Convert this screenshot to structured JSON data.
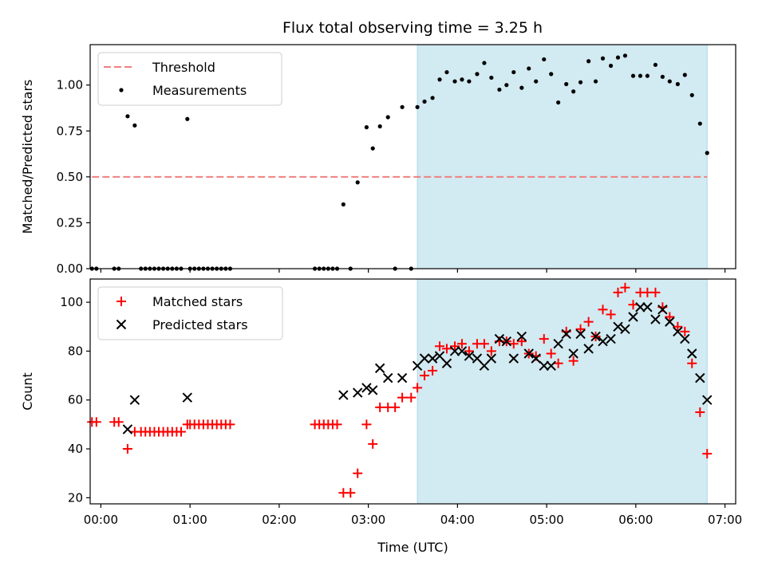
{
  "title": "Flux total observing time = 3.25 h",
  "colors": {
    "threshold": "#f08080",
    "measurement": "#000000",
    "matched": "#ff0000",
    "predicted": "#000000",
    "shade": "#add8e6"
  },
  "chart_data": [
    {
      "type": "scatter",
      "ylabel": "Matched/Predicted stars",
      "xlim": [
        -0.12,
        7.12
      ],
      "ylim": [
        0.0,
        1.22
      ],
      "yticks": [
        0.0,
        0.25,
        0.5,
        0.75,
        1.0
      ],
      "ytick_labels": [
        "0.00",
        "0.25",
        "0.50",
        "0.75",
        "1.00"
      ],
      "shaded_region": [
        3.55,
        6.8
      ],
      "legend": {
        "placement": "upper-left",
        "entries": [
          "Threshold",
          "Measurements"
        ]
      },
      "series": [
        {
          "name": "Threshold",
          "kind": "dashed-line",
          "x": [
            -0.1,
            6.8
          ],
          "y": [
            0.5,
            0.5
          ]
        },
        {
          "name": "Measurements",
          "kind": "dots",
          "x": [
            -0.1,
            -0.05,
            0.15,
            0.2,
            0.3,
            0.38,
            0.45,
            0.5,
            0.55,
            0.6,
            0.65,
            0.7,
            0.75,
            0.8,
            0.85,
            0.9,
            0.97,
            1.0,
            1.05,
            1.1,
            1.15,
            1.2,
            1.25,
            1.3,
            1.35,
            1.4,
            1.45,
            2.4,
            2.45,
            2.5,
            2.55,
            2.6,
            2.65,
            2.72,
            2.8,
            2.88,
            2.98,
            3.05,
            3.13,
            3.22,
            3.3,
            3.38,
            3.48,
            3.55,
            3.63,
            3.72,
            3.8,
            3.88,
            3.97,
            4.05,
            4.13,
            4.22,
            4.3,
            4.38,
            4.47,
            4.55,
            4.63,
            4.72,
            4.8,
            4.88,
            4.97,
            5.05,
            5.13,
            5.22,
            5.3,
            5.38,
            5.47,
            5.55,
            5.63,
            5.72,
            5.8,
            5.88,
            5.97,
            6.05,
            6.13,
            6.22,
            6.3,
            6.38,
            6.47,
            6.55,
            6.63,
            6.72,
            6.8
          ],
          "y": [
            0.0,
            0.0,
            0.0,
            0.0,
            0.83,
            0.78,
            0.0,
            0.0,
            0.0,
            0.0,
            0.0,
            0.0,
            0.0,
            0.0,
            0.0,
            0.0,
            0.815,
            0.0,
            0.0,
            0.0,
            0.0,
            0.0,
            0.0,
            0.0,
            0.0,
            0.0,
            0.0,
            0.0,
            0.0,
            0.0,
            0.0,
            0.0,
            0.0,
            0.35,
            0.0,
            0.47,
            0.77,
            0.655,
            0.775,
            0.825,
            0.0,
            0.88,
            0.0,
            0.88,
            0.91,
            0.93,
            1.03,
            1.07,
            1.02,
            1.03,
            1.02,
            1.06,
            1.12,
            1.04,
            0.975,
            1.0,
            1.07,
            0.985,
            1.09,
            1.02,
            1.14,
            1.06,
            0.905,
            1.005,
            0.965,
            1.015,
            1.13,
            1.02,
            1.145,
            1.105,
            1.15,
            1.16,
            1.05,
            1.05,
            1.05,
            1.11,
            1.045,
            1.02,
            1.005,
            1.055,
            0.945,
            0.79,
            0.63
          ]
        }
      ]
    },
    {
      "type": "scatter",
      "ylabel": "Count",
      "xlabel": "Time (UTC)",
      "xlim": [
        -0.12,
        7.12
      ],
      "ylim": [
        17.5,
        109.5
      ],
      "xticks": [
        0,
        1,
        2,
        3,
        4,
        5,
        6,
        7
      ],
      "xtick_labels": [
        "00:00",
        "01:00",
        "02:00",
        "03:00",
        "04:00",
        "05:00",
        "06:00",
        "07:00"
      ],
      "yticks": [
        20,
        40,
        60,
        80,
        100
      ],
      "ytick_labels": [
        "20",
        "40",
        "60",
        "80",
        "100"
      ],
      "shaded_region": [
        3.55,
        6.8
      ],
      "legend": {
        "placement": "upper-left",
        "entries": [
          "Matched stars",
          "Predicted stars"
        ]
      },
      "series": [
        {
          "name": "Matched stars",
          "kind": "plus",
          "x": [
            -0.1,
            -0.05,
            0.15,
            0.2,
            0.3,
            0.38,
            0.45,
            0.5,
            0.55,
            0.6,
            0.65,
            0.7,
            0.75,
            0.8,
            0.85,
            0.9,
            0.97,
            1.0,
            1.05,
            1.1,
            1.15,
            1.2,
            1.25,
            1.3,
            1.35,
            1.4,
            1.45,
            2.4,
            2.45,
            2.5,
            2.55,
            2.6,
            2.65,
            2.72,
            2.8,
            2.88,
            2.98,
            3.05,
            3.13,
            3.22,
            3.3,
            3.38,
            3.48,
            3.55,
            3.63,
            3.72,
            3.8,
            3.88,
            3.97,
            4.05,
            4.13,
            4.22,
            4.3,
            4.38,
            4.47,
            4.55,
            4.63,
            4.72,
            4.8,
            4.88,
            4.97,
            5.05,
            5.13,
            5.22,
            5.3,
            5.38,
            5.47,
            5.55,
            5.63,
            5.72,
            5.8,
            5.88,
            5.97,
            6.05,
            6.13,
            6.22,
            6.3,
            6.38,
            6.47,
            6.55,
            6.63,
            6.72,
            6.8
          ],
          "y": [
            51,
            51,
            51,
            51,
            40,
            47,
            47,
            47,
            47,
            47,
            47,
            47,
            47,
            47,
            47,
            47,
            50,
            50,
            50,
            50,
            50,
            50,
            50,
            50,
            50,
            50,
            50,
            50,
            50,
            50,
            50,
            50,
            50,
            22,
            22,
            30,
            50,
            42,
            57,
            57,
            57,
            61,
            61,
            65,
            70,
            72,
            82,
            81,
            82,
            83,
            80,
            83,
            83,
            80,
            84,
            84,
            83,
            84,
            79,
            78,
            85,
            79,
            75,
            88,
            76,
            89,
            92,
            86,
            97,
            95,
            104,
            106,
            99,
            104,
            104,
            104,
            98,
            94,
            90,
            88,
            75,
            55,
            38
          ]
        },
        {
          "name": "Predicted stars",
          "kind": "x",
          "x": [
            0.3,
            0.38,
            0.97,
            2.72,
            2.88,
            2.98,
            3.05,
            3.13,
            3.22,
            3.38,
            3.55,
            3.63,
            3.72,
            3.8,
            3.88,
            3.97,
            4.05,
            4.13,
            4.22,
            4.3,
            4.38,
            4.47,
            4.55,
            4.63,
            4.72,
            4.8,
            4.88,
            4.97,
            5.05,
            5.13,
            5.22,
            5.3,
            5.38,
            5.47,
            5.55,
            5.63,
            5.72,
            5.8,
            5.88,
            5.97,
            6.05,
            6.13,
            6.22,
            6.3,
            6.38,
            6.47,
            6.55,
            6.63,
            6.72,
            6.8
          ],
          "y": [
            48,
            60,
            61,
            62,
            63,
            65,
            64,
            73,
            69,
            69,
            74,
            77,
            77,
            78,
            75,
            80,
            80,
            78,
            77,
            74,
            77,
            85,
            84,
            77,
            86,
            79,
            77,
            74,
            74,
            83,
            87,
            79,
            87,
            81,
            86,
            84,
            85,
            90,
            89,
            94,
            98,
            98,
            93,
            97,
            92,
            88,
            85,
            79,
            69,
            60
          ]
        }
      ]
    }
  ]
}
